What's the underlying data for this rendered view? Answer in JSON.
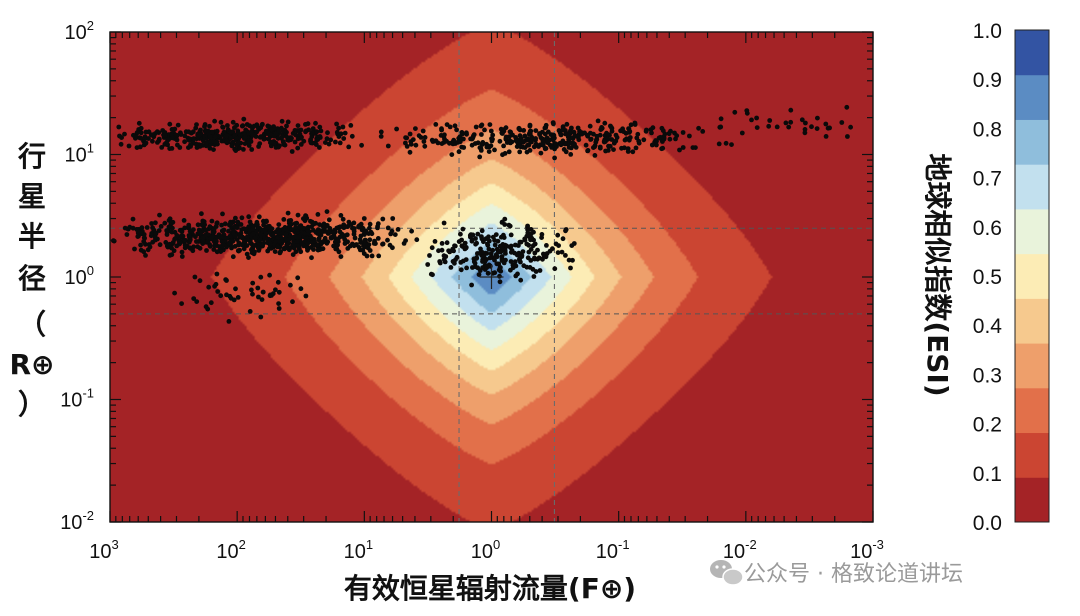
{
  "chart_data": {
    "type": "heatmap",
    "xlabel": "有效恒星辐射流量(F⊕)",
    "ylabel_lines": [
      "行",
      "星",
      "半",
      "径",
      "（",
      "R⊕",
      "）"
    ],
    "colorbar_label": "地球相似指数(ESI)",
    "x_scale": "log",
    "y_scale": "log",
    "x_reversed": true,
    "xlim": [
      1000,
      0.001
    ],
    "ylim": [
      0.01,
      100
    ],
    "x_ticks": [
      {
        "base": "10",
        "exp": "3"
      },
      {
        "base": "10",
        "exp": "2"
      },
      {
        "base": "10",
        "exp": "1"
      },
      {
        "base": "10",
        "exp": "0"
      },
      {
        "base": "10",
        "exp": "-1"
      },
      {
        "base": "10",
        "exp": "-2"
      },
      {
        "base": "10",
        "exp": "-3"
      }
    ],
    "y_ticks": [
      {
        "base": "10",
        "exp": "-2"
      },
      {
        "base": "10",
        "exp": "-1"
      },
      {
        "base": "10",
        "exp": "0"
      },
      {
        "base": "10",
        "exp": "1"
      },
      {
        "base": "10",
        "exp": "2"
      }
    ],
    "colorbar_ticks": [
      "0.0",
      "0.1",
      "0.2",
      "0.3",
      "0.4",
      "0.5",
      "0.6",
      "0.7",
      "0.8",
      "0.9",
      "1.0"
    ],
    "colorbar_colors": [
      "#a42326",
      "#cb4532",
      "#e2704a",
      "#ee9f6b",
      "#f6c98e",
      "#fcecb5",
      "#e9f3db",
      "#c2e0ee",
      "#8fbedc",
      "#5b8cc3",
      "#3354a3"
    ],
    "reference_point": {
      "flux": 1,
      "radius": 1
    },
    "reference_lines": {
      "flux": [
        1.8,
        0.32
      ],
      "radius": [
        2.5,
        0.5
      ]
    },
    "planet_clusters": [
      {
        "flux_range": [
          10,
          1000
        ],
        "radius_range": [
          10,
          20
        ],
        "count": 420
      },
      {
        "flux_range": [
          0.01,
          10
        ],
        "radius_range": [
          9,
          20
        ],
        "count": 380
      },
      {
        "flux_range": [
          0.001,
          0.02
        ],
        "radius_range": [
          12,
          28
        ],
        "count": 30
      },
      {
        "flux_range": [
          4,
          1000
        ],
        "radius_range": [
          1.3,
          3.6
        ],
        "count": 760
      },
      {
        "flux_range": [
          0.2,
          4
        ],
        "radius_range": [
          0.8,
          3.2
        ],
        "count": 240
      },
      {
        "flux_range": [
          20,
          400
        ],
        "radius_range": [
          0.4,
          1.3
        ],
        "count": 50
      }
    ],
    "watermark": "公众号 · 格致论道讲坛"
  }
}
